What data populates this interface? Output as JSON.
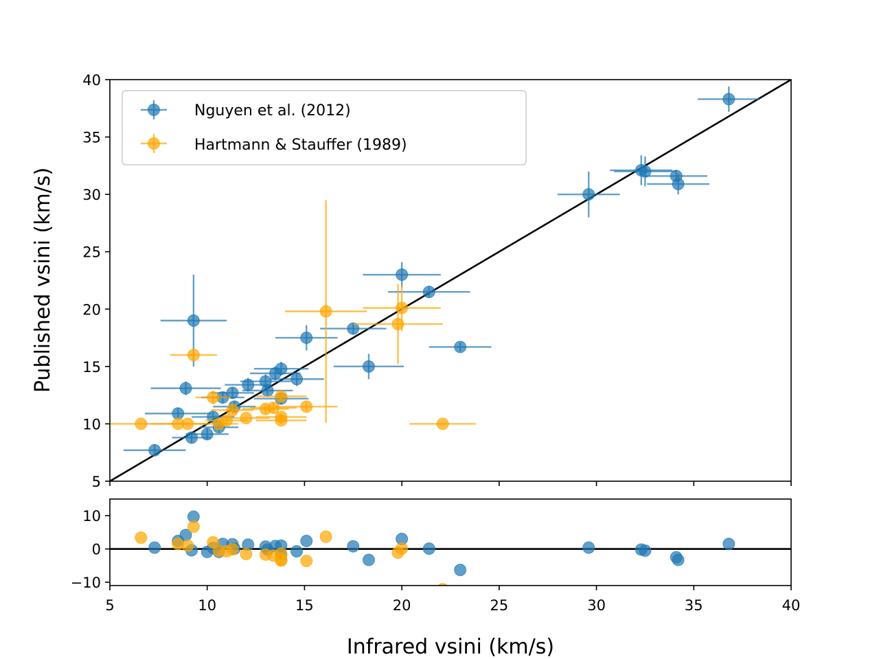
{
  "chart_data": {
    "type": "scatter",
    "title": "",
    "xlabel": "Infrared vsini (km/s)",
    "ylabel": "Published vsini (km/s)",
    "xlim": [
      5,
      40
    ],
    "ylim": [
      5,
      40
    ],
    "residual_ylim": [
      -11,
      15
    ],
    "x_ticks": [
      5,
      10,
      15,
      20,
      25,
      30,
      35,
      40
    ],
    "y_ticks": [
      5,
      10,
      15,
      20,
      25,
      30,
      35,
      40
    ],
    "residual_y_ticks": [
      -10,
      0,
      10
    ],
    "residual_tick_labels": [
      "−10",
      "0",
      "10"
    ],
    "reference_line": "y = x",
    "legend_position": "upper-left",
    "series": [
      {
        "name": "Nguyen et al. (2012)",
        "color": "#1f77b4",
        "points": [
          {
            "x": 7.3,
            "y": 7.7,
            "xerr": 1.6,
            "yerr": 0.5
          },
          {
            "x": 8.5,
            "y": 10.9,
            "xerr": 1.7,
            "yerr": 0.5
          },
          {
            "x": 8.9,
            "y": 13.1,
            "xerr": 1.8,
            "yerr": 0.6
          },
          {
            "x": 9.2,
            "y": 8.8,
            "xerr": 1.0,
            "yerr": 0.5
          },
          {
            "x": 9.3,
            "y": 19.0,
            "xerr": 1.7,
            "yerr": 4.0
          },
          {
            "x": 10.0,
            "y": 9.1,
            "xerr": 1.1,
            "yerr": 0.5
          },
          {
            "x": 10.3,
            "y": 10.6,
            "xerr": 1.1,
            "yerr": 0.5
          },
          {
            "x": 10.6,
            "y": 9.7,
            "xerr": 1.0,
            "yerr": 0.4
          },
          {
            "x": 10.8,
            "y": 12.3,
            "xerr": 1.1,
            "yerr": 0.5
          },
          {
            "x": 11.3,
            "y": 12.7,
            "xerr": 1.1,
            "yerr": 0.5
          },
          {
            "x": 11.4,
            "y": 11.5,
            "xerr": 1.1,
            "yerr": 0.5
          },
          {
            "x": 12.1,
            "y": 13.4,
            "xerr": 1.2,
            "yerr": 0.6
          },
          {
            "x": 13.0,
            "y": 13.7,
            "xerr": 1.3,
            "yerr": 0.6
          },
          {
            "x": 13.1,
            "y": 12.9,
            "xerr": 1.3,
            "yerr": 0.5
          },
          {
            "x": 13.5,
            "y": 14.4,
            "xerr": 1.3,
            "yerr": 0.6
          },
          {
            "x": 13.8,
            "y": 14.8,
            "xerr": 1.4,
            "yerr": 0.6
          },
          {
            "x": 13.8,
            "y": 12.2,
            "xerr": 1.4,
            "yerr": 0.5
          },
          {
            "x": 14.6,
            "y": 13.9,
            "xerr": 1.4,
            "yerr": 0.6
          },
          {
            "x": 15.1,
            "y": 17.5,
            "xerr": 1.6,
            "yerr": 1.1
          },
          {
            "x": 17.5,
            "y": 18.3,
            "xerr": 1.7,
            "yerr": 0.5
          },
          {
            "x": 18.3,
            "y": 15.0,
            "xerr": 1.8,
            "yerr": 1.1
          },
          {
            "x": 20.0,
            "y": 23.0,
            "xerr": 2.0,
            "yerr": 1.1
          },
          {
            "x": 21.4,
            "y": 21.5,
            "xerr": 2.1,
            "yerr": 0.5
          },
          {
            "x": 23.0,
            "y": 16.7,
            "xerr": 1.6,
            "yerr": 0.4
          },
          {
            "x": 29.6,
            "y": 30.0,
            "xerr": 1.6,
            "yerr": 2.0
          },
          {
            "x": 32.3,
            "y": 32.1,
            "xerr": 1.6,
            "yerr": 1.3
          },
          {
            "x": 32.5,
            "y": 32.0,
            "xerr": 1.6,
            "yerr": 1.3
          },
          {
            "x": 34.1,
            "y": 31.6,
            "xerr": 1.6,
            "yerr": 0.5
          },
          {
            "x": 34.2,
            "y": 30.9,
            "xerr": 1.6,
            "yerr": 0.9
          },
          {
            "x": 36.8,
            "y": 38.3,
            "xerr": 1.6,
            "yerr": 1.1
          }
        ]
      },
      {
        "name": "Hartmann & Stauffer (1989)",
        "color": "#ffa500",
        "points": [
          {
            "x": 6.6,
            "y": 10.0,
            "xerr": 1.6,
            "yerr": 0.0
          },
          {
            "x": 8.5,
            "y": 10.0,
            "xerr": 1.4,
            "yerr": 0.0
          },
          {
            "x": 9.0,
            "y": 10.0,
            "xerr": 1.0,
            "yerr": 0.0
          },
          {
            "x": 9.3,
            "y": 16.0,
            "xerr": 1.2,
            "yerr": 0.5
          },
          {
            "x": 10.3,
            "y": 12.3,
            "xerr": 0.9,
            "yerr": 0.6
          },
          {
            "x": 10.6,
            "y": 10.0,
            "xerr": 1.0,
            "yerr": 0.0
          },
          {
            "x": 11.0,
            "y": 10.3,
            "xerr": 1.1,
            "yerr": 0.4
          },
          {
            "x": 11.3,
            "y": 11.2,
            "xerr": 1.1,
            "yerr": 0.3
          },
          {
            "x": 12.0,
            "y": 10.5,
            "xerr": 1.2,
            "yerr": 0.0
          },
          {
            "x": 13.0,
            "y": 11.3,
            "xerr": 1.2,
            "yerr": 0.4
          },
          {
            "x": 13.4,
            "y": 11.4,
            "xerr": 1.2,
            "yerr": 0.4
          },
          {
            "x": 13.8,
            "y": 12.4,
            "xerr": 1.3,
            "yerr": 0.5
          },
          {
            "x": 13.8,
            "y": 10.6,
            "xerr": 1.3,
            "yerr": 0.3
          },
          {
            "x": 13.8,
            "y": 10.3,
            "xerr": 1.3,
            "yerr": 0.3
          },
          {
            "x": 15.1,
            "y": 11.5,
            "xerr": 1.6,
            "yerr": 0.4
          },
          {
            "x": 16.1,
            "y": 19.8,
            "xerr": 2.1,
            "yerr": 9.7
          },
          {
            "x": 19.8,
            "y": 18.7,
            "xerr": 2.3,
            "yerr": 3.5
          },
          {
            "x": 20.0,
            "y": 20.1,
            "xerr": 2.0,
            "yerr": 2.0
          },
          {
            "x": 22.1,
            "y": 10.0,
            "xerr": 1.7,
            "yerr": 0.0
          }
        ]
      }
    ]
  },
  "legend": {
    "series_1": "Nguyen et al. (2012)",
    "series_2": "Hartmann & Stauffer (1989)"
  }
}
